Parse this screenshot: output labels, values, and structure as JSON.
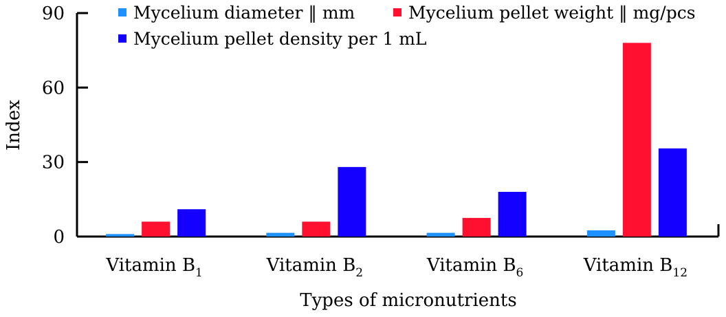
{
  "chart_data": {
    "type": "bar",
    "categories": [
      {
        "main": "Vitamin B",
        "sub": "1"
      },
      {
        "main": "Vitamin B",
        "sub": "2"
      },
      {
        "main": "Vitamin B",
        "sub": "6"
      },
      {
        "main": "Vitamin B",
        "sub": "12"
      }
    ],
    "series": [
      {
        "name": "Mycelium diameter ‖ mm",
        "color": "#1e90ff",
        "values": [
          1.0,
          1.5,
          1.5,
          2.5
        ]
      },
      {
        "name": "Mycelium pellet weight ‖ mg/pcs",
        "color": "#ff1030",
        "values": [
          6.0,
          6.0,
          7.5,
          78.0
        ]
      },
      {
        "name": "Mycelium pellet density per 1 mL",
        "color": "#1400ff",
        "values": [
          11.0,
          28.0,
          18.0,
          35.5
        ]
      }
    ],
    "xlabel": "Types of micronutrients",
    "ylabel": "Index",
    "ylim": [
      0,
      90
    ],
    "yticks": [
      0,
      30,
      60,
      90
    ],
    "grid": false,
    "legend_position": "top"
  }
}
